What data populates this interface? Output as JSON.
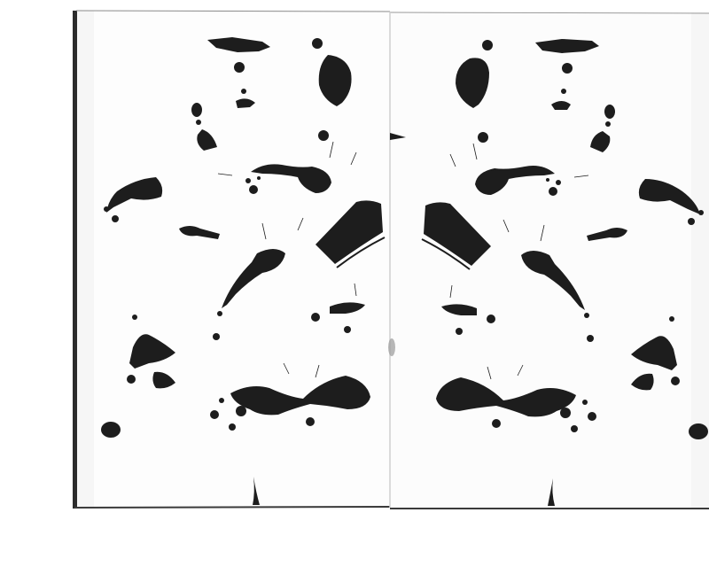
{
  "image": {
    "subject": "symmetric-ink-blot-scan",
    "colors": {
      "background": "#ffffff",
      "paper": "#fdfdfd",
      "paper_shadow": "#e4e4e4",
      "edge_dark": "#2b2b2b",
      "ink": "#1d1d1d",
      "fold": "#c9c9c9"
    }
  }
}
